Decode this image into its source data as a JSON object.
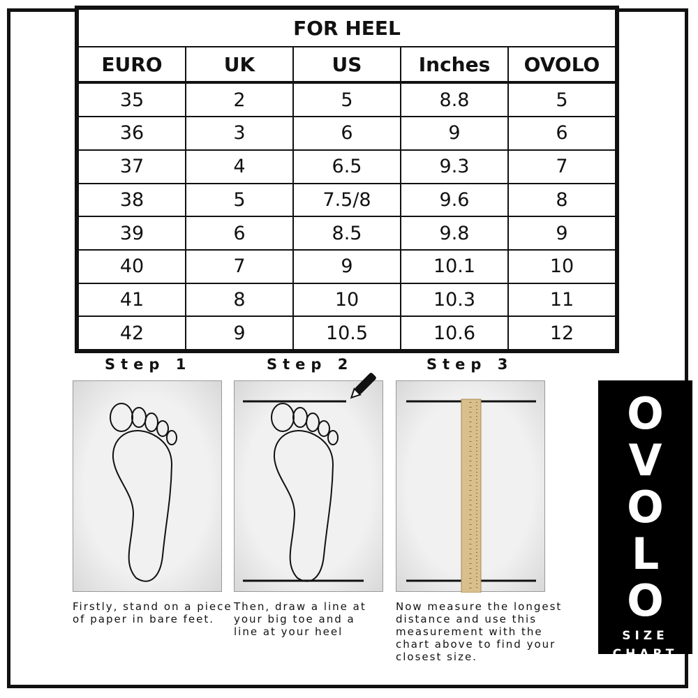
{
  "table": {
    "title": "FOR HEEL",
    "columns": [
      "EURO",
      "UK",
      "US",
      "Inches",
      "OVOLO"
    ],
    "rows": [
      [
        "35",
        "2",
        "5",
        "8.8",
        "5"
      ],
      [
        "36",
        "3",
        "6",
        "9",
        "6"
      ],
      [
        "37",
        "4",
        "6.5",
        "9.3",
        "7"
      ],
      [
        "38",
        "5",
        "7.5/8",
        "9.6",
        "8"
      ],
      [
        "39",
        "6",
        "8.5",
        "9.8",
        "9"
      ],
      [
        "40",
        "7",
        "9",
        "10.1",
        "10"
      ],
      [
        "41",
        "8",
        "10",
        "10.3",
        "11"
      ],
      [
        "42",
        "9",
        "10.5",
        "10.6",
        "12"
      ]
    ]
  },
  "steps": [
    {
      "label": "Step 1",
      "text": "Firstly, stand on a piece of paper in bare feet.",
      "icon": "foot-outline-icon"
    },
    {
      "label": "Step 2",
      "text": "Then, draw a line at your big toe and a line at your heel",
      "icon": "foot-lines-pencil-icon"
    },
    {
      "label": "Step 3",
      "text": "Now measure the longest distance and use this measurement with the chart above to find your closest size.",
      "icon": "ruler-icon"
    }
  ],
  "brand": {
    "logo": "OVOLO",
    "subtitle_line1": "SIZE",
    "subtitle_line2": "CHART",
    "background": "#000000",
    "color": "#ffffff"
  }
}
